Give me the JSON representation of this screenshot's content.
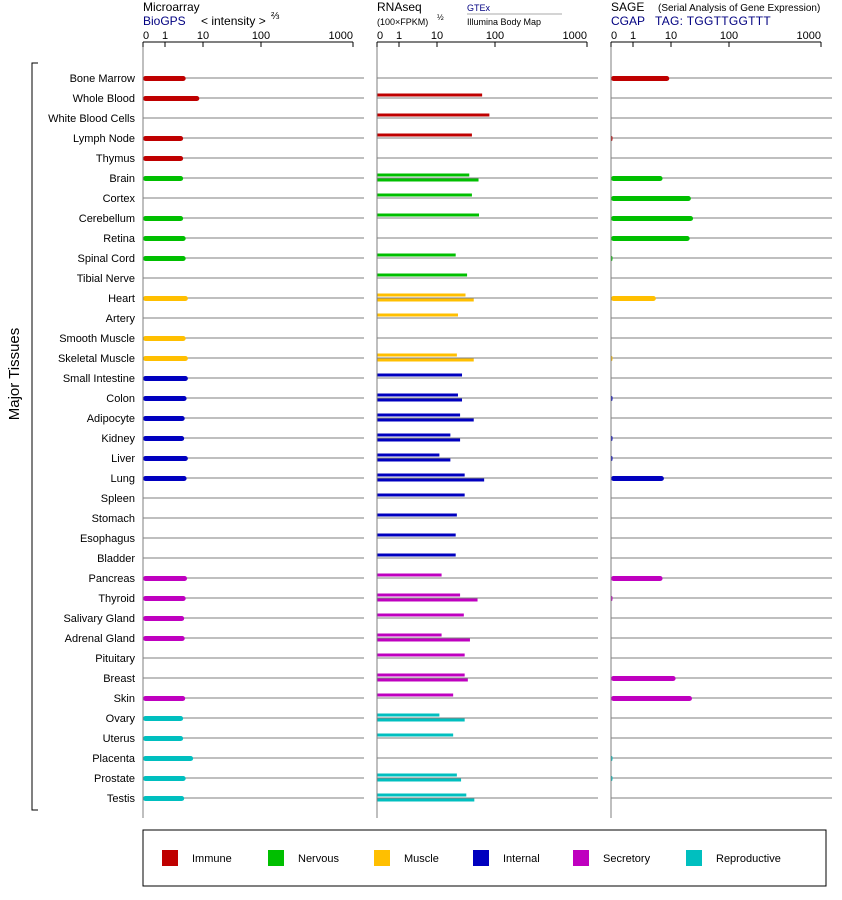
{
  "chart_data": {
    "type": "bar",
    "y_group_label": "Major Tissues",
    "tissues": [
      "Bone Marrow",
      "Whole Blood",
      "White Blood Cells",
      "Lymph Node",
      "Thymus",
      "Brain",
      "Cortex",
      "Cerebellum",
      "Retina",
      "Spinal Cord",
      "Tibial Nerve",
      "Heart",
      "Artery",
      "Smooth Muscle",
      "Skeletal Muscle",
      "Small Intestine",
      "Colon",
      "Adipocyte",
      "Kidney",
      "Liver",
      "Lung",
      "Spleen",
      "Stomach",
      "Esophagus",
      "Bladder",
      "Pancreas",
      "Thyroid",
      "Salivary Gland",
      "Adrenal Gland",
      "Pituitary",
      "Breast",
      "Skin",
      "Ovary",
      "Uterus",
      "Placenta",
      "Prostate",
      "Testis"
    ],
    "tissue_groups": [
      "Immune",
      "Immune",
      "Immune",
      "Immune",
      "Immune",
      "Nervous",
      "Nervous",
      "Nervous",
      "Nervous",
      "Nervous",
      "Nervous",
      "Muscle",
      "Muscle",
      "Muscle",
      "Muscle",
      "Internal",
      "Internal",
      "Internal",
      "Internal",
      "Internal",
      "Internal",
      "Internal",
      "Internal",
      "Internal",
      "Internal",
      "Secretory",
      "Secretory",
      "Secretory",
      "Secretory",
      "Secretory",
      "Secretory",
      "Secretory",
      "Reproductive",
      "Reproductive",
      "Reproductive",
      "Reproductive",
      "Reproductive"
    ],
    "legend": [
      {
        "name": "Immune",
        "color": "#bf0000"
      },
      {
        "name": "Nervous",
        "color": "#00bf00"
      },
      {
        "name": "Muscle",
        "color": "#ffbf00"
      },
      {
        "name": "Internal",
        "color": "#0000bf"
      },
      {
        "name": "Secretory",
        "color": "#bf00bf"
      },
      {
        "name": "Reproductive",
        "color": "#00bfbf"
      }
    ],
    "legend_position": "bottom",
    "x_ticks": [
      0,
      1,
      10,
      100,
      1000
    ],
    "x_tick_labels": [
      "0",
      "1",
      "10",
      "100",
      "1000"
    ],
    "panels": [
      {
        "title": "Microarray",
        "source": "BioGPS",
        "scale_label": "< intensity >",
        "scale_exp": "⅔",
        "values": [
          3.5,
          8,
          null,
          3,
          3,
          3,
          null,
          3,
          3.5,
          3.5,
          null,
          4,
          null,
          3.5,
          4,
          4,
          3.7,
          3.3,
          3.2,
          4,
          3.7,
          null,
          null,
          null,
          null,
          3.8,
          3.5,
          3.2,
          3.3,
          null,
          null,
          3.4,
          3,
          3,
          5.5,
          3.5,
          3.2
        ]
      },
      {
        "title": "RNAseq",
        "scale_label": "(100×FPKM)",
        "scale_exp": "½",
        "source_top": "GTEx",
        "source_bottom": "Illumina Body Map",
        "values_a": [
          null,
          60,
          80,
          40,
          null,
          36,
          40,
          53,
          null,
          21,
          33,
          31,
          23,
          null,
          22,
          27,
          23,
          25,
          17,
          11,
          30,
          30,
          22,
          21,
          21,
          12,
          25,
          29,
          12,
          30,
          30,
          19,
          11,
          19,
          null,
          22,
          32
        ],
        "values_b": [
          null,
          null,
          null,
          null,
          null,
          52,
          null,
          null,
          null,
          null,
          null,
          43,
          null,
          null,
          43,
          null,
          27,
          43,
          25,
          17,
          65,
          null,
          null,
          null,
          null,
          null,
          50,
          null,
          37,
          null,
          34,
          null,
          30,
          null,
          null,
          26,
          44
        ]
      },
      {
        "title": "SAGE",
        "subtitle": "(Serial Analysis of Gene Expression)",
        "source": "CGAP",
        "tag": "TAG: TGGTTGGTTT",
        "values": [
          9,
          null,
          null,
          0.02,
          null,
          6,
          22,
          24,
          21,
          0.02,
          null,
          4,
          null,
          null,
          0.01,
          null,
          0.03,
          null,
          0.04,
          0.04,
          6.5,
          null,
          null,
          null,
          null,
          6,
          0.02,
          null,
          null,
          null,
          12,
          23,
          null,
          null,
          0.02,
          0.02,
          null
        ]
      }
    ]
  }
}
